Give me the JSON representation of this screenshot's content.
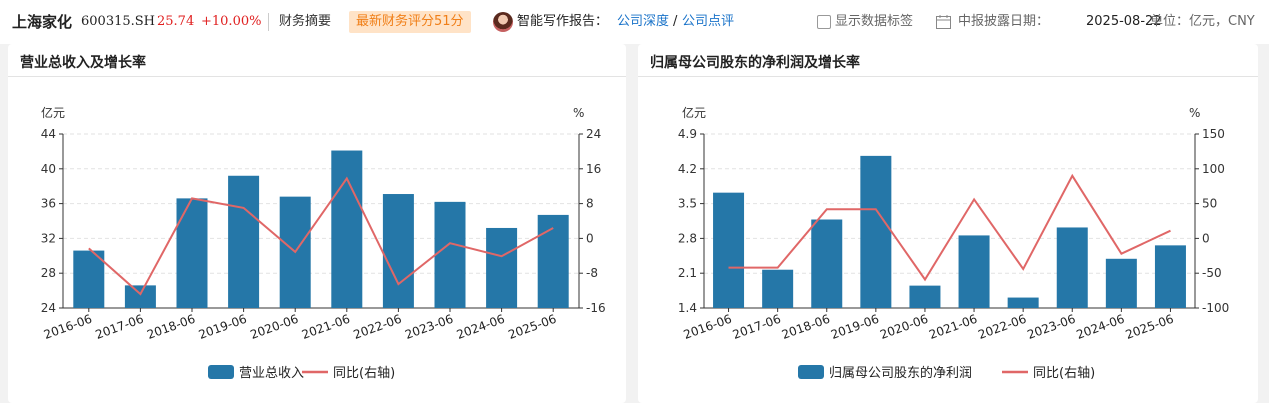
{
  "header": {
    "stock_name": "上海家化",
    "stock_code": "600315.SH",
    "price": "25.74",
    "change": "+10.00%",
    "summary_label": "财务摘要",
    "score_badge": "最新财务评分51分",
    "report_label": "智能写作报告：",
    "link_depth": "公司深度",
    "slash": "/",
    "link_comment": "公司点评",
    "show_labels": "显示数据标签",
    "date_label": "中报披露日期：",
    "date_value": "2025-08-22",
    "unit_label": "单位：亿元，CNY"
  },
  "colors": {
    "bar": "#2577a8",
    "line": "#e06767",
    "price": "#e02020",
    "link": "#1a73c9",
    "badge_text": "#f07f18",
    "badge_bg": "#ffe3c7"
  },
  "chart_data": [
    {
      "type": "bar",
      "title": "营业总收入及增长率",
      "categories": [
        "2016-06",
        "2017-06",
        "2018-06",
        "2019-06",
        "2020-06",
        "2021-06",
        "2022-06",
        "2023-06",
        "2024-06",
        "2025-06"
      ],
      "series": [
        {
          "name": "营业总收入",
          "type": "bar",
          "axis": "left",
          "values": [
            30.6,
            26.6,
            36.6,
            39.2,
            36.8,
            42.1,
            37.1,
            36.2,
            33.2,
            34.7
          ]
        },
        {
          "name": "同比(右轴)",
          "type": "line",
          "axis": "right",
          "values": [
            -2.3,
            -12.8,
            9.2,
            7.0,
            -3.1,
            13.8,
            -10.5,
            -1.1,
            -4.1,
            2.4
          ]
        }
      ],
      "left_unit": "亿元",
      "right_unit": "%",
      "left_ticks": [
        24,
        28,
        32,
        36,
        40,
        44
      ],
      "right_ticks": [
        -16,
        -8,
        0,
        8,
        16,
        24
      ],
      "ylim_left": [
        24,
        44
      ],
      "ylim_right": [
        -16,
        24
      ],
      "grid": true,
      "legend": "bottom"
    },
    {
      "type": "bar",
      "title": "归属母公司股东的净利润及增长率",
      "categories": [
        "2016-06",
        "2017-06",
        "2018-06",
        "2019-06",
        "2020-06",
        "2021-06",
        "2022-06",
        "2023-06",
        "2024-06",
        "2025-06"
      ],
      "series": [
        {
          "name": "归属母公司股东的净利润",
          "type": "bar",
          "axis": "left",
          "values": [
            3.72,
            2.17,
            3.18,
            4.46,
            1.85,
            2.86,
            1.61,
            3.02,
            2.39,
            2.66
          ]
        },
        {
          "name": "同比(右轴)",
          "type": "line",
          "axis": "right",
          "values": [
            -42,
            -42,
            42,
            42,
            -59,
            56,
            -44,
            90,
            -22,
            11
          ]
        }
      ],
      "left_unit": "亿元",
      "right_unit": "%",
      "left_ticks": [
        1.4,
        2.1,
        2.8,
        3.5,
        4.2,
        4.9
      ],
      "right_ticks": [
        -100,
        -50,
        0,
        50,
        100,
        150
      ],
      "ylim_left": [
        1.4,
        4.9
      ],
      "ylim_right": [
        -100,
        150
      ],
      "grid": true,
      "legend": "bottom"
    }
  ]
}
